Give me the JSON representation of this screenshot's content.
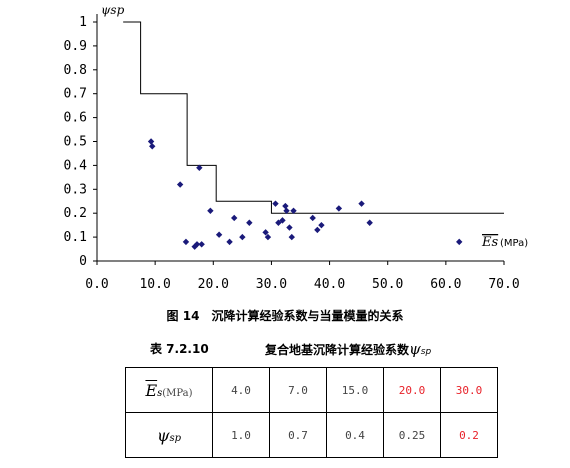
{
  "chart_data": {
    "type": "scatter",
    "ylabel": "ψsp",
    "xlabel_symbol": "Es",
    "xlabel_unit": "(MPa)",
    "xlim": [
      0,
      70
    ],
    "ylim": [
      0,
      1
    ],
    "x_ticks": [
      "0.0",
      "10.0",
      "20.0",
      "30.0",
      "40.0",
      "50.0",
      "60.0",
      "70.0"
    ],
    "y_ticks": [
      "0",
      "0.1",
      "0.2",
      "0.3",
      "0.4",
      "0.5",
      "0.6",
      "0.7",
      "0.8",
      "0.9",
      "1"
    ],
    "grid": false,
    "series": [
      {
        "kind": "points",
        "x": [
          9.3,
          9.5,
          14.3,
          15.3,
          16.8,
          17.2,
          17.6,
          18.0,
          19.5,
          21.0,
          22.8,
          23.6,
          25.0,
          26.2,
          29.0,
          29.4,
          30.7,
          31.2,
          31.9,
          32.4,
          32.6,
          33.1,
          33.5,
          33.8,
          37.1,
          37.9,
          38.6,
          41.6,
          45.5,
          46.9,
          62.3
        ],
        "y": [
          0.5,
          0.48,
          0.32,
          0.08,
          0.06,
          0.07,
          0.39,
          0.07,
          0.21,
          0.11,
          0.08,
          0.18,
          0.1,
          0.16,
          0.12,
          0.1,
          0.24,
          0.16,
          0.17,
          0.23,
          0.21,
          0.14,
          0.1,
          0.21,
          0.18,
          0.13,
          0.15,
          0.22,
          0.24,
          0.16,
          0.08
        ]
      },
      {
        "kind": "step",
        "x": [
          4.5,
          7.5,
          7.5,
          15.5,
          15.5,
          20.5,
          20.5,
          30.0,
          30.0,
          70.0
        ],
        "y": [
          1.0,
          1.0,
          0.7,
          0.7,
          0.4,
          0.4,
          0.25,
          0.25,
          0.2,
          0.2
        ]
      }
    ]
  },
  "figure_caption": {
    "number": "图 14",
    "text": "沉降计算经验系数与当量模量的关系"
  },
  "table_caption": {
    "number": "表 7.2.10",
    "text": "复合地基沉降计算经验系数",
    "symbol": "ψ",
    "symbol_sub": "sp"
  },
  "table": {
    "header_row1": {
      "symbol": "E",
      "sub": "s",
      "unit": "(MPa)"
    },
    "header_row2": {
      "symbol": "ψ",
      "sub": "sp"
    },
    "row1": [
      "4.0",
      "7.0",
      "15.0",
      "20.0",
      "30.0"
    ],
    "row2": [
      "1.0",
      "0.7",
      "0.4",
      "0.25",
      "0.2"
    ],
    "highlight_color": "#e8222a"
  },
  "colors": {
    "points": "#1a1a7a",
    "line": "#000000"
  }
}
